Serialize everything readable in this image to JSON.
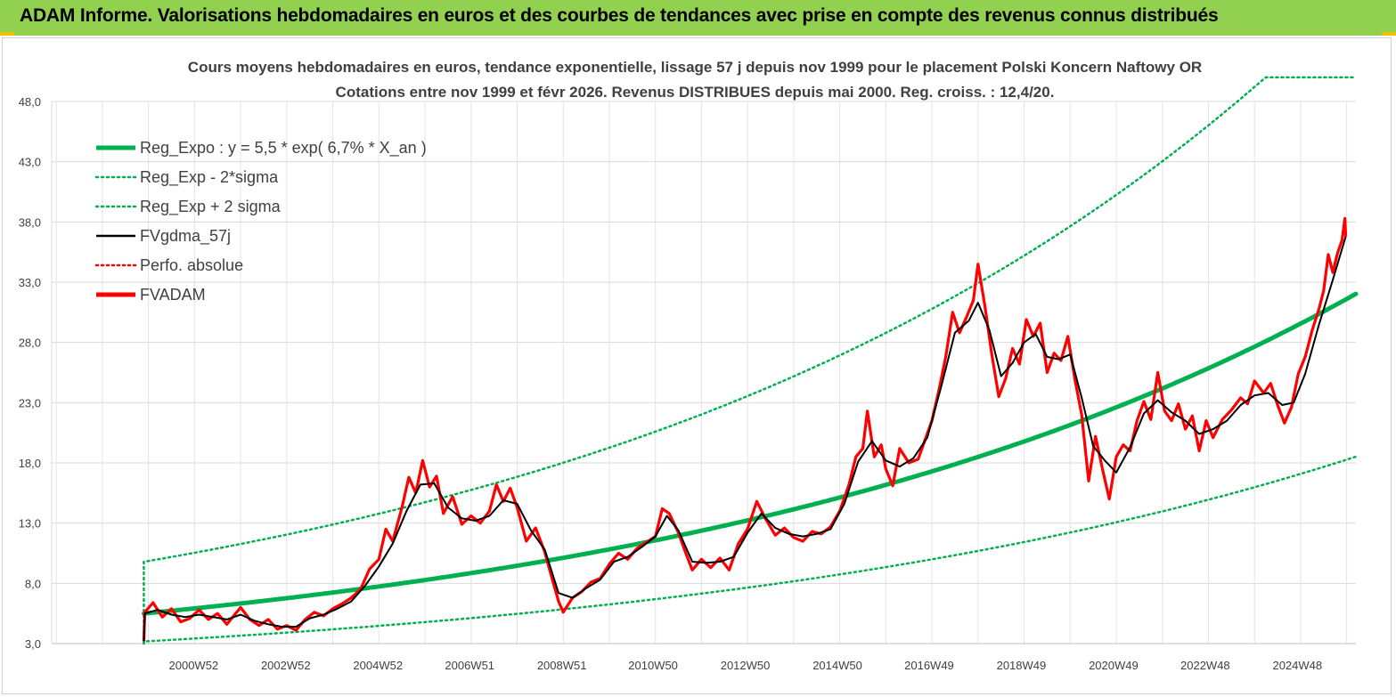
{
  "header": {
    "title": "ADAM Informe. Valorisations hebdomadaires en euros et des courbes de tendances avec prise en compte des revenus connus distribués"
  },
  "chart_data": {
    "type": "line",
    "title_line1": "Cours moyens hebdomadaires en euros, tendance exponentielle, lissage 57 j depuis nov 1999 pour le placement Polski Koncern Naftowy OR",
    "title_line2": "Cotations entre nov 1999 et févr 2026. Revenus DISTRIBUES depuis mai 2000. Reg. croiss. : 12,4/20.",
    "ylim": [
      3.0,
      48.0
    ],
    "y_ticks": [
      "3,0",
      "8,0",
      "13,0",
      "18,0",
      "23,0",
      "28,0",
      "33,0",
      "38,0",
      "43,0",
      "48,0"
    ],
    "x_range": [
      1997.9,
      2026.2
    ],
    "x_ticks": [
      {
        "label": "2000W52",
        "year": 2000.98
      },
      {
        "label": "2002W52",
        "year": 2002.98
      },
      {
        "label": "2004W52",
        "year": 2004.98
      },
      {
        "label": "2006W51",
        "year": 2006.97
      },
      {
        "label": "2008W51",
        "year": 2008.97
      },
      {
        "label": "2010W50",
        "year": 2010.95
      },
      {
        "label": "2012W50",
        "year": 2012.95
      },
      {
        "label": "2014W50",
        "year": 2014.95
      },
      {
        "label": "2016W49",
        "year": 2016.94
      },
      {
        "label": "2018W49",
        "year": 2018.94
      },
      {
        "label": "2020W49",
        "year": 2020.94
      },
      {
        "label": "2022W48",
        "year": 2022.93
      },
      {
        "label": "2024W48",
        "year": 2024.93
      }
    ],
    "legend": [
      {
        "label": "Reg_Expo : y = 5,5 * exp( 6,7% *  X_an )",
        "color": "#00b050",
        "style": "thick"
      },
      {
        "label": "Reg_Exp - 2*sigma",
        "color": "#00b050",
        "style": "dotted"
      },
      {
        "label": "Reg_Exp + 2 sigma",
        "color": "#00b050",
        "style": "dotted"
      },
      {
        "label": "FVgdma_57j",
        "color": "#000000",
        "style": "solid"
      },
      {
        "label": "Perfo. absolue",
        "color": "#ff0000",
        "style": "dotted"
      },
      {
        "label": "FVADAM",
        "color": "#ff0000",
        "style": "thick"
      }
    ],
    "regression": {
      "start_year": 1999.9,
      "end_year": 2026.2,
      "y0": 5.5,
      "rate": 0.067,
      "lower_factor": 0.578,
      "upper_factor": 1.78,
      "upper_cap": 50.0
    },
    "fvadam": {
      "name": "FVADAM",
      "color": "#ff0000",
      "points": [
        [
          1999.9,
          3.2
        ],
        [
          1999.92,
          5.6
        ],
        [
          2000.1,
          6.4
        ],
        [
          2000.3,
          5.2
        ],
        [
          2000.5,
          5.9
        ],
        [
          2000.7,
          4.8
        ],
        [
          2000.9,
          5.1
        ],
        [
          2001.1,
          5.8
        ],
        [
          2001.3,
          5.0
        ],
        [
          2001.5,
          5.5
        ],
        [
          2001.7,
          4.6
        ],
        [
          2002.0,
          6.0
        ],
        [
          2002.2,
          5.0
        ],
        [
          2002.4,
          4.5
        ],
        [
          2002.6,
          5.0
        ],
        [
          2002.8,
          4.2
        ],
        [
          2003.0,
          4.5
        ],
        [
          2003.2,
          4.1
        ],
        [
          2003.4,
          5.0
        ],
        [
          2003.6,
          5.6
        ],
        [
          2003.8,
          5.3
        ],
        [
          2004.0,
          5.9
        ],
        [
          2004.2,
          6.3
        ],
        [
          2004.4,
          6.8
        ],
        [
          2004.6,
          7.5
        ],
        [
          2004.8,
          9.2
        ],
        [
          2005.0,
          10.0
        ],
        [
          2005.15,
          12.5
        ],
        [
          2005.3,
          11.5
        ],
        [
          2005.5,
          14.3
        ],
        [
          2005.65,
          16.8
        ],
        [
          2005.8,
          15.5
        ],
        [
          2005.95,
          18.2
        ],
        [
          2006.1,
          16.0
        ],
        [
          2006.25,
          16.9
        ],
        [
          2006.4,
          13.8
        ],
        [
          2006.6,
          15.2
        ],
        [
          2006.8,
          12.9
        ],
        [
          2007.0,
          13.6
        ],
        [
          2007.2,
          13.0
        ],
        [
          2007.4,
          14.0
        ],
        [
          2007.55,
          16.2
        ],
        [
          2007.7,
          14.8
        ],
        [
          2007.85,
          15.9
        ],
        [
          2008.0,
          14.3
        ],
        [
          2008.2,
          11.5
        ],
        [
          2008.4,
          12.6
        ],
        [
          2008.6,
          10.6
        ],
        [
          2008.75,
          8.5
        ],
        [
          2008.9,
          6.5
        ],
        [
          2009.0,
          5.6
        ],
        [
          2009.2,
          6.8
        ],
        [
          2009.4,
          7.3
        ],
        [
          2009.6,
          8.1
        ],
        [
          2009.8,
          8.4
        ],
        [
          2010.0,
          9.6
        ],
        [
          2010.2,
          10.5
        ],
        [
          2010.4,
          10.0
        ],
        [
          2010.6,
          10.9
        ],
        [
          2010.8,
          11.4
        ],
        [
          2011.0,
          11.9
        ],
        [
          2011.15,
          14.2
        ],
        [
          2011.3,
          13.8
        ],
        [
          2011.5,
          12.2
        ],
        [
          2011.65,
          10.6
        ],
        [
          2011.8,
          9.1
        ],
        [
          2012.0,
          10.0
        ],
        [
          2012.2,
          9.3
        ],
        [
          2012.4,
          10.1
        ],
        [
          2012.6,
          9.1
        ],
        [
          2012.8,
          11.3
        ],
        [
          2013.0,
          12.5
        ],
        [
          2013.2,
          14.8
        ],
        [
          2013.4,
          13.3
        ],
        [
          2013.6,
          12.0
        ],
        [
          2013.8,
          12.6
        ],
        [
          2014.0,
          11.8
        ],
        [
          2014.2,
          11.5
        ],
        [
          2014.4,
          12.3
        ],
        [
          2014.6,
          12.1
        ],
        [
          2014.8,
          12.7
        ],
        [
          2015.0,
          14.0
        ],
        [
          2015.2,
          16.2
        ],
        [
          2015.35,
          18.5
        ],
        [
          2015.5,
          19.2
        ],
        [
          2015.6,
          22.3
        ],
        [
          2015.75,
          18.5
        ],
        [
          2015.9,
          19.5
        ],
        [
          2016.0,
          17.5
        ],
        [
          2016.15,
          16.1
        ],
        [
          2016.3,
          19.2
        ],
        [
          2016.5,
          18.0
        ],
        [
          2016.7,
          18.3
        ],
        [
          2016.85,
          19.9
        ],
        [
          2017.0,
          21.5
        ],
        [
          2017.15,
          24.0
        ],
        [
          2017.3,
          26.8
        ],
        [
          2017.45,
          30.5
        ],
        [
          2017.6,
          28.8
        ],
        [
          2017.75,
          30.1
        ],
        [
          2017.9,
          31.5
        ],
        [
          2018.0,
          34.5
        ],
        [
          2018.15,
          31.0
        ],
        [
          2018.3,
          27.0
        ],
        [
          2018.45,
          23.5
        ],
        [
          2018.6,
          25.0
        ],
        [
          2018.75,
          27.5
        ],
        [
          2018.9,
          26.2
        ],
        [
          2019.05,
          29.9
        ],
        [
          2019.2,
          28.5
        ],
        [
          2019.35,
          29.6
        ],
        [
          2019.5,
          25.5
        ],
        [
          2019.65,
          27.1
        ],
        [
          2019.8,
          26.5
        ],
        [
          2019.95,
          28.5
        ],
        [
          2020.1,
          25.0
        ],
        [
          2020.25,
          22.0
        ],
        [
          2020.4,
          16.5
        ],
        [
          2020.55,
          20.2
        ],
        [
          2020.7,
          17.5
        ],
        [
          2020.85,
          15.0
        ],
        [
          2021.0,
          18.5
        ],
        [
          2021.15,
          19.5
        ],
        [
          2021.3,
          19.0
        ],
        [
          2021.45,
          21.5
        ],
        [
          2021.6,
          23.1
        ],
        [
          2021.75,
          21.6
        ],
        [
          2021.9,
          25.5
        ],
        [
          2022.05,
          22.3
        ],
        [
          2022.2,
          21.5
        ],
        [
          2022.35,
          22.9
        ],
        [
          2022.5,
          20.8
        ],
        [
          2022.65,
          21.9
        ],
        [
          2022.8,
          19.0
        ],
        [
          2022.95,
          21.5
        ],
        [
          2023.1,
          20.1
        ],
        [
          2023.3,
          21.6
        ],
        [
          2023.5,
          22.4
        ],
        [
          2023.7,
          23.4
        ],
        [
          2023.85,
          22.9
        ],
        [
          2024.0,
          24.8
        ],
        [
          2024.2,
          23.8
        ],
        [
          2024.35,
          24.6
        ],
        [
          2024.5,
          22.8
        ],
        [
          2024.65,
          21.3
        ],
        [
          2024.8,
          22.6
        ],
        [
          2024.95,
          25.4
        ],
        [
          2025.1,
          26.8
        ],
        [
          2025.25,
          29.0
        ],
        [
          2025.4,
          30.8
        ],
        [
          2025.5,
          32.3
        ],
        [
          2025.6,
          35.3
        ],
        [
          2025.7,
          33.8
        ],
        [
          2025.8,
          35.4
        ],
        [
          2025.9,
          36.5
        ],
        [
          2025.96,
          38.3
        ],
        [
          2025.98,
          36.8
        ]
      ]
    },
    "fvgdma_57j": {
      "name": "FVgdma_57j",
      "color": "#000000",
      "points": [
        [
          1999.9,
          3.2
        ],
        [
          1999.92,
          5.5
        ],
        [
          2000.2,
          5.8
        ],
        [
          2000.5,
          5.4
        ],
        [
          2000.8,
          5.2
        ],
        [
          2001.1,
          5.4
        ],
        [
          2001.4,
          5.2
        ],
        [
          2001.7,
          5.0
        ],
        [
          2002.0,
          5.4
        ],
        [
          2002.3,
          4.9
        ],
        [
          2002.6,
          4.6
        ],
        [
          2002.9,
          4.4
        ],
        [
          2003.2,
          4.4
        ],
        [
          2003.5,
          5.1
        ],
        [
          2003.8,
          5.4
        ],
        [
          2004.1,
          5.9
        ],
        [
          2004.4,
          6.5
        ],
        [
          2004.7,
          7.8
        ],
        [
          2005.0,
          9.4
        ],
        [
          2005.3,
          11.3
        ],
        [
          2005.6,
          14.0
        ],
        [
          2005.9,
          16.2
        ],
        [
          2006.2,
          16.3
        ],
        [
          2006.5,
          14.3
        ],
        [
          2006.8,
          13.4
        ],
        [
          2007.1,
          13.2
        ],
        [
          2007.4,
          13.6
        ],
        [
          2007.7,
          14.9
        ],
        [
          2008.0,
          14.6
        ],
        [
          2008.3,
          12.4
        ],
        [
          2008.6,
          10.8
        ],
        [
          2008.9,
          7.2
        ],
        [
          2009.2,
          6.8
        ],
        [
          2009.5,
          7.6
        ],
        [
          2009.8,
          8.3
        ],
        [
          2010.1,
          9.8
        ],
        [
          2010.4,
          10.2
        ],
        [
          2010.7,
          11.0
        ],
        [
          2011.0,
          11.9
        ],
        [
          2011.25,
          13.6
        ],
        [
          2011.5,
          12.4
        ],
        [
          2011.8,
          9.8
        ],
        [
          2012.1,
          9.7
        ],
        [
          2012.4,
          9.8
        ],
        [
          2012.7,
          10.2
        ],
        [
          2013.0,
          12.2
        ],
        [
          2013.3,
          13.8
        ],
        [
          2013.6,
          12.6
        ],
        [
          2013.9,
          12.1
        ],
        [
          2014.2,
          11.9
        ],
        [
          2014.5,
          12.1
        ],
        [
          2014.8,
          12.5
        ],
        [
          2015.1,
          14.6
        ],
        [
          2015.4,
          18.1
        ],
        [
          2015.7,
          19.8
        ],
        [
          2016.0,
          18.2
        ],
        [
          2016.3,
          17.7
        ],
        [
          2016.6,
          18.4
        ],
        [
          2016.9,
          20.1
        ],
        [
          2017.2,
          24.3
        ],
        [
          2017.5,
          28.8
        ],
        [
          2017.8,
          29.8
        ],
        [
          2018.0,
          31.3
        ],
        [
          2018.25,
          29.0
        ],
        [
          2018.5,
          25.2
        ],
        [
          2018.75,
          26.3
        ],
        [
          2019.0,
          28.0
        ],
        [
          2019.25,
          28.7
        ],
        [
          2019.5,
          26.8
        ],
        [
          2019.75,
          26.6
        ],
        [
          2020.0,
          27.0
        ],
        [
          2020.25,
          23.4
        ],
        [
          2020.5,
          19.4
        ],
        [
          2020.75,
          18.2
        ],
        [
          2021.0,
          17.2
        ],
        [
          2021.3,
          19.3
        ],
        [
          2021.6,
          22.1
        ],
        [
          2021.9,
          23.2
        ],
        [
          2022.2,
          22.2
        ],
        [
          2022.5,
          21.5
        ],
        [
          2022.8,
          20.4
        ],
        [
          2023.1,
          20.8
        ],
        [
          2023.4,
          21.5
        ],
        [
          2023.7,
          22.8
        ],
        [
          2024.0,
          23.6
        ],
        [
          2024.3,
          23.8
        ],
        [
          2024.6,
          22.8
        ],
        [
          2024.85,
          23.0
        ],
        [
          2025.1,
          25.4
        ],
        [
          2025.4,
          29.5
        ],
        [
          2025.7,
          33.2
        ],
        [
          2025.98,
          36.8
        ]
      ]
    }
  }
}
